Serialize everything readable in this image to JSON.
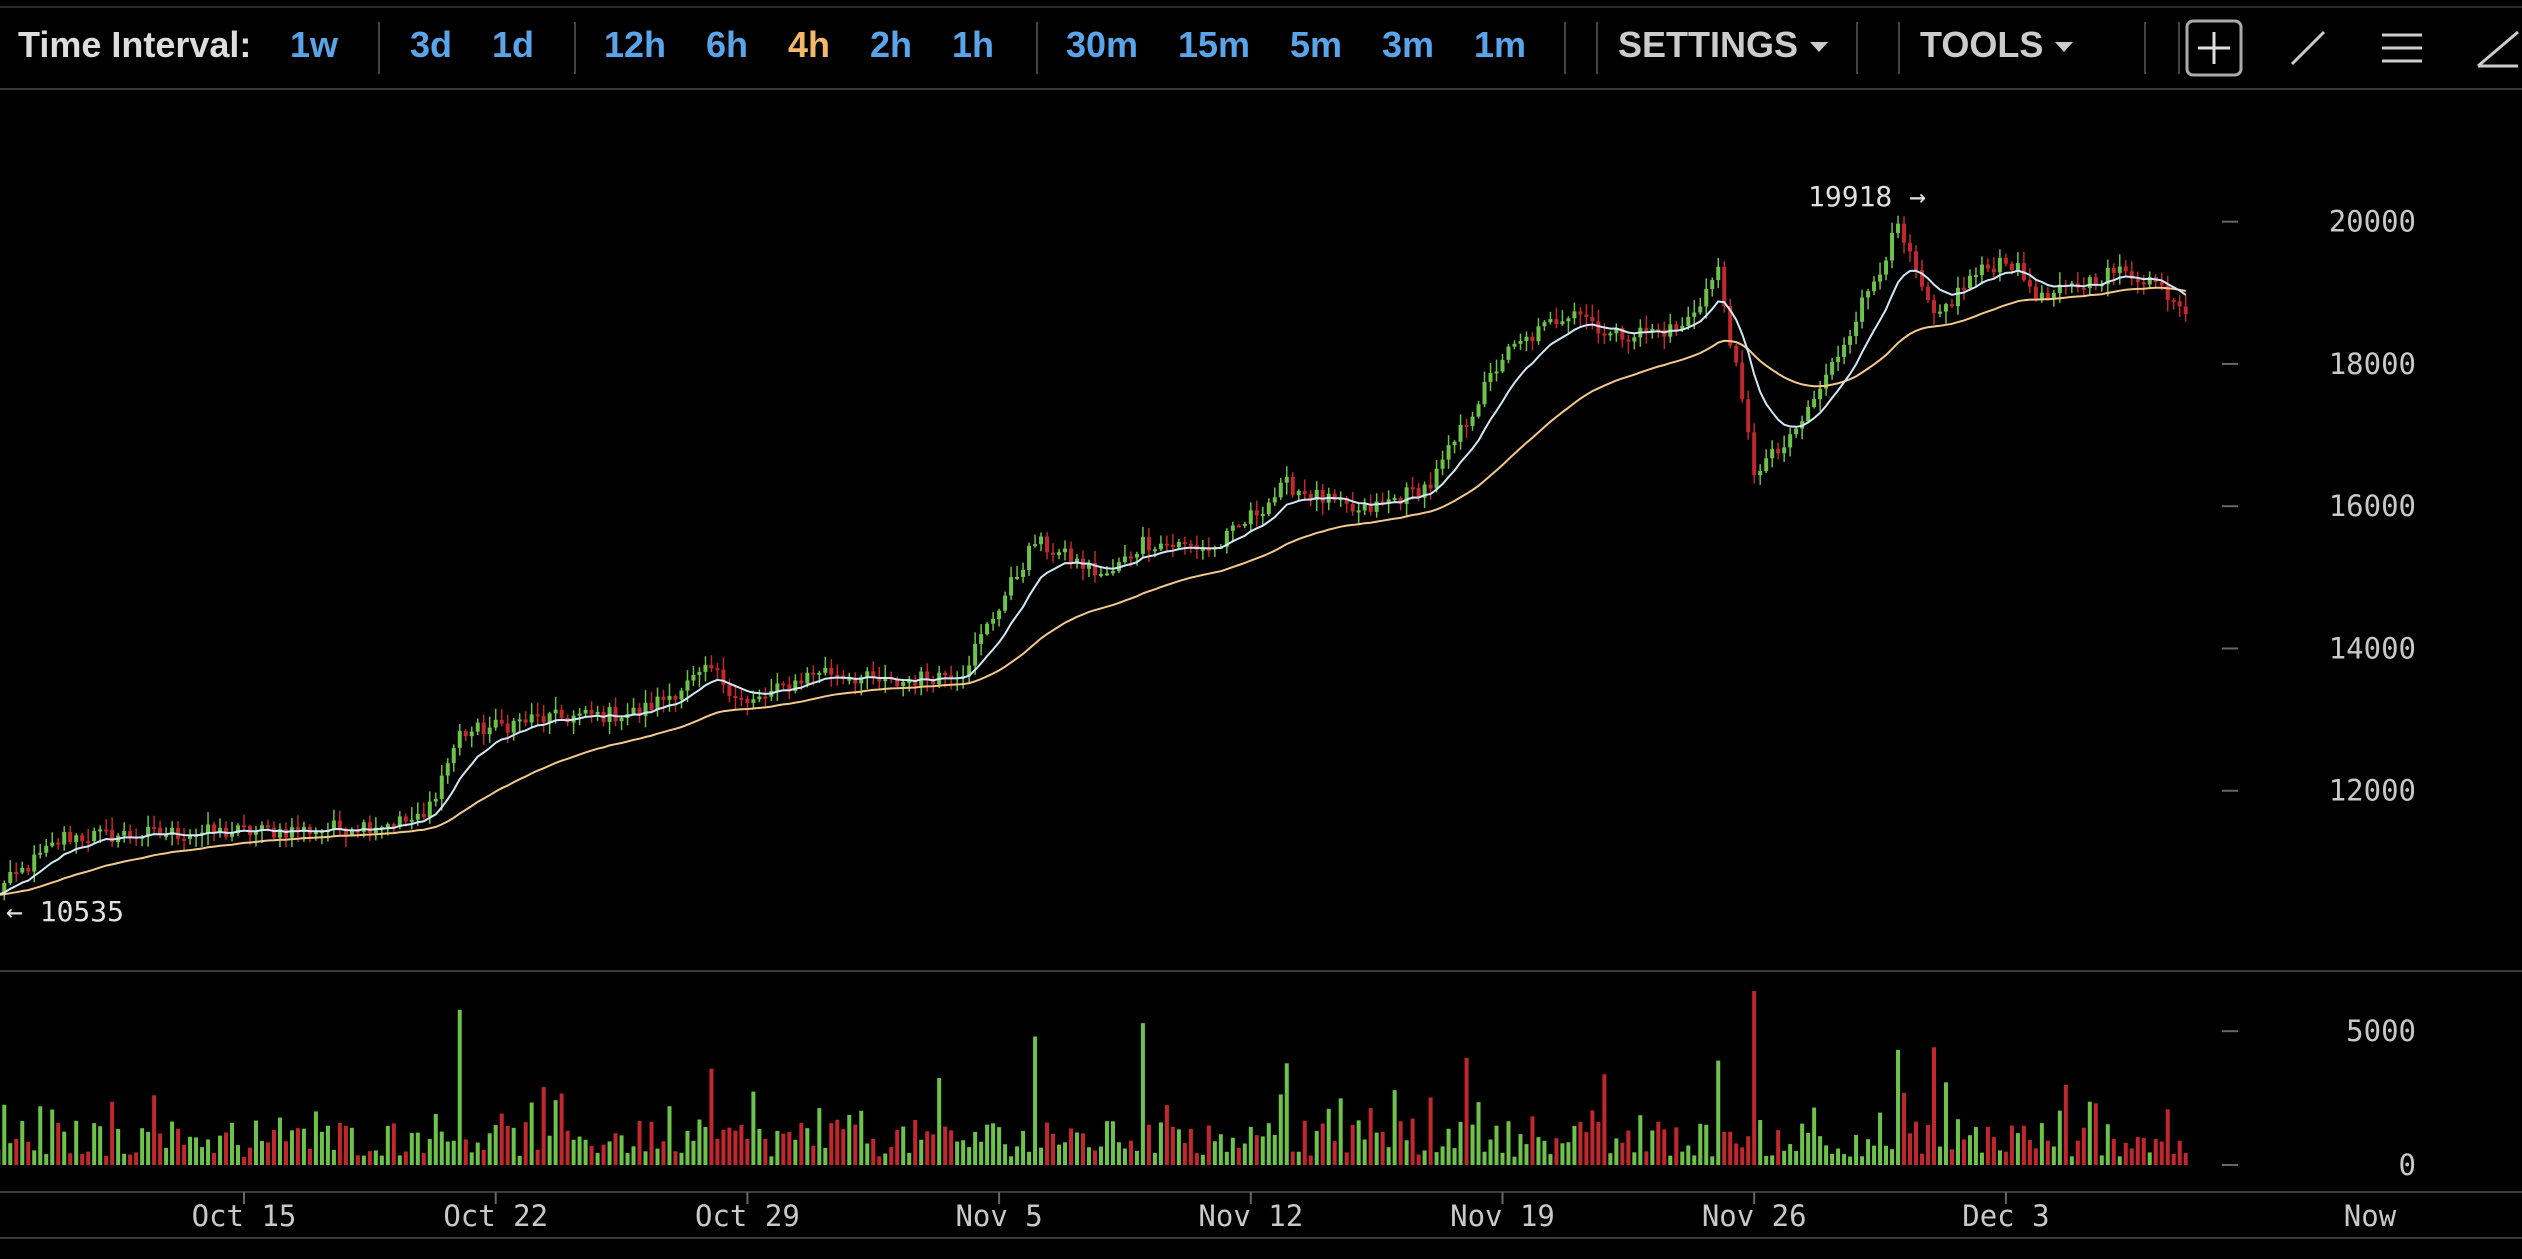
{
  "toolbar": {
    "label": "Time Interval:",
    "intervals": [
      "1w",
      "3d",
      "1d",
      "12h",
      "6h",
      "4h",
      "2h",
      "1h",
      "30m",
      "15m",
      "5m",
      "3m",
      "1m"
    ],
    "active_interval": "4h",
    "settings_label": "SETTINGS",
    "tools_label": "TOOLS",
    "icons": [
      "crosshair-icon",
      "line-tool-icon",
      "menu-icon",
      "draw-tool-icon"
    ]
  },
  "colors": {
    "up": "#6cc24a",
    "down": "#c0282d",
    "ma_fast": "#cfe7f5",
    "ma_slow": "#f3c98b",
    "accent": "#5aa4ea",
    "active": "#f4b86b"
  },
  "chart_data": {
    "type": "candlestick",
    "price_axis": {
      "ticks": [
        12000,
        14000,
        16000,
        18000,
        20000
      ],
      "range": [
        10000,
        20600
      ]
    },
    "volume_axis": {
      "ticks": [
        0,
        5000
      ],
      "range": [
        0,
        6800
      ]
    },
    "x_tick_labels": [
      "Oct 15",
      "Oct 22",
      "Oct 29",
      "Nov 5",
      "Nov 12",
      "Nov 19",
      "Nov 26",
      "Dec 3",
      "Now"
    ],
    "annotations": {
      "high": "19918",
      "low": "10535"
    },
    "close_anchors": [
      [
        "Oct 8",
        10535
      ],
      [
        "Oct 10",
        11350
      ],
      [
        "Oct 13",
        11400
      ],
      [
        "Oct 17",
        11450
      ],
      [
        "Oct 20",
        11600
      ],
      [
        "Oct 21",
        12800
      ],
      [
        "Oct 23",
        13000
      ],
      [
        "Oct 26",
        13100
      ],
      [
        "Oct 28",
        13700
      ],
      [
        "Oct 29",
        13200
      ],
      [
        "Oct 31",
        13700
      ],
      [
        "Nov 2",
        13500
      ],
      [
        "Nov 4",
        13700
      ],
      [
        "Nov 6",
        15500
      ],
      [
        "Nov 8",
        15000
      ],
      [
        "Nov 9",
        15500
      ],
      [
        "Nov 11",
        15400
      ],
      [
        "Nov 13",
        16300
      ],
      [
        "Nov 15",
        15900
      ],
      [
        "Nov 17",
        16300
      ],
      [
        "Nov 19",
        18100
      ],
      [
        "Nov 21",
        18800
      ],
      [
        "Nov 22",
        18400
      ],
      [
        "Nov 24",
        18500
      ],
      [
        "Nov 25",
        19300
      ],
      [
        "Nov 26",
        16500
      ],
      [
        "Nov 27",
        16900
      ],
      [
        "Nov 28",
        17800
      ],
      [
        "Nov 30",
        19900
      ],
      [
        "Dec 1",
        18600
      ],
      [
        "Dec 2",
        19200
      ],
      [
        "Dec 3",
        19500
      ],
      [
        "Dec 4",
        18900
      ],
      [
        "Dec 5",
        19100
      ],
      [
        "Dec 6",
        19300
      ],
      [
        "Dec 7",
        19200
      ],
      [
        "Dec 8",
        18800
      ]
    ],
    "volume_spikes": [
      [
        "Oct 21",
        5800
      ],
      [
        "Oct 28",
        3600
      ],
      [
        "Nov 6",
        4800
      ],
      [
        "Nov 9",
        5300
      ],
      [
        "Nov 13",
        3800
      ],
      [
        "Nov 18",
        4000
      ],
      [
        "Nov 25",
        3900
      ],
      [
        "Nov 26",
        6500
      ],
      [
        "Nov 30",
        4300
      ],
      [
        "Dec 1",
        4400
      ]
    ]
  }
}
